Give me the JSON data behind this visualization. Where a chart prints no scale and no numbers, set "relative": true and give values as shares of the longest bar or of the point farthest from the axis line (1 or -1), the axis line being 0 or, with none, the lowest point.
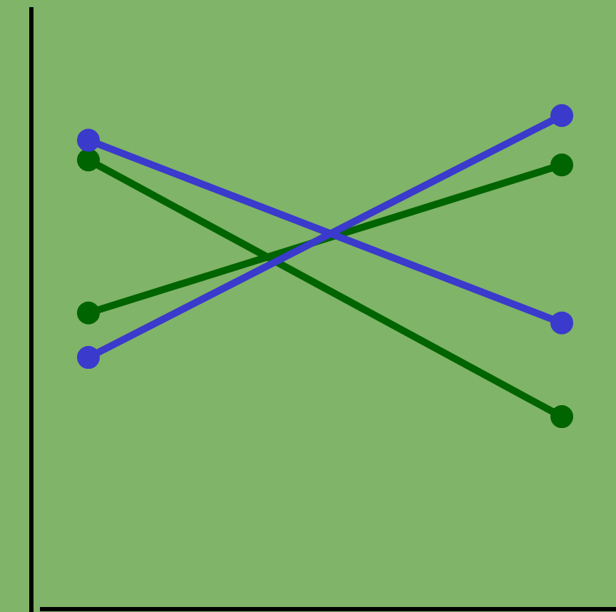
{
  "chart_data": {
    "type": "line",
    "relative": true,
    "categories": [
      null,
      null
    ],
    "marker": "circle",
    "line_style": "solid",
    "series": [
      {
        "color": "#006400",
        "values": [
          0.91,
          0.39
        ]
      },
      {
        "color": "#006400",
        "values": [
          0.6,
          0.9
        ]
      },
      {
        "color": "#3a3acc",
        "values": [
          0.95,
          0.58
        ]
      },
      {
        "color": "#3a3acc",
        "values": [
          0.51,
          1.0
        ]
      }
    ]
  }
}
